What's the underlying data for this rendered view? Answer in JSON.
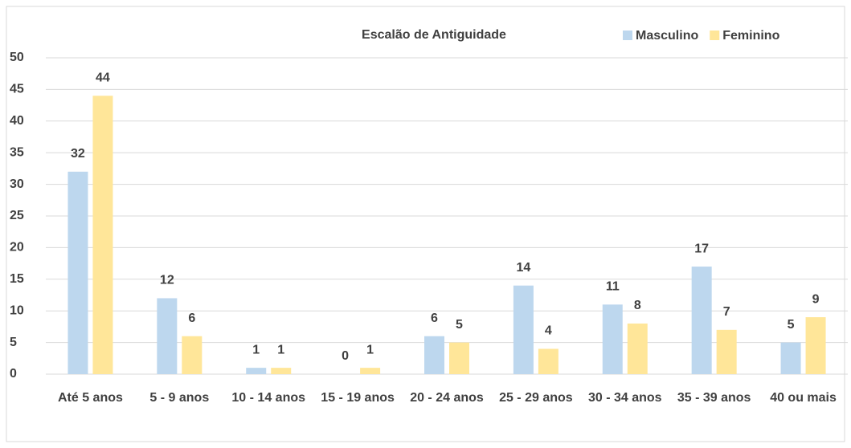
{
  "chart_data": {
    "type": "bar",
    "title": "Escalão de Antiguidade",
    "categories": [
      "Até 5 anos",
      "5 - 9 anos",
      "10 - 14 anos",
      "15 - 19 anos",
      "20 - 24 anos",
      "25 - 29 anos",
      "30 - 34 anos",
      "35 - 39 anos",
      "40 ou mais"
    ],
    "series": [
      {
        "name": "Masculino",
        "color": "#bdd7ee",
        "values": [
          32,
          12,
          1,
          0,
          6,
          14,
          11,
          17,
          5
        ]
      },
      {
        "name": "Feminino",
        "color": "#ffe699",
        "values": [
          44,
          6,
          1,
          1,
          5,
          4,
          8,
          7,
          9
        ]
      }
    ],
    "ylim": [
      0,
      50
    ],
    "yticks": [
      0,
      5,
      10,
      15,
      20,
      25,
      30,
      35,
      40,
      45,
      50
    ],
    "grid": true,
    "legend": "top-right"
  }
}
